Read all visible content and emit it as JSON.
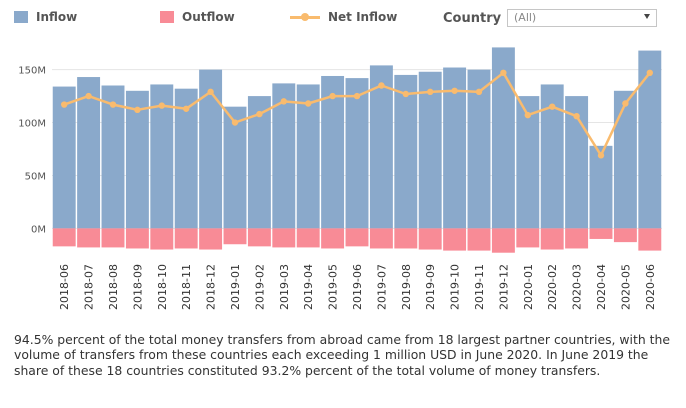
{
  "legend": {
    "inflow": "Inflow",
    "outflow": "Outflow",
    "net": "Net Inflow"
  },
  "filter": {
    "label": "Country",
    "value": "(All)"
  },
  "caption": "94.5% percent of the total money transfers from abroad came from 18 largest partner countries, with the volume of transfers from these countries each exceeding 1 million USD in June 2020. In June 2019 the share of these 18 countries constituted 93.2% percent of the total volume of money transfers.",
  "colors": {
    "inflow": "#8aa9cb",
    "outflow": "#f88b96",
    "net": "#f9bb6e",
    "grid": "#e5e5e5",
    "axis_text": "#555555"
  },
  "chart_data": {
    "type": "bar",
    "categories": [
      "2018-06",
      "2018-07",
      "2018-08",
      "2018-09",
      "2018-10",
      "2018-11",
      "2018-12",
      "2019-01",
      "2019-02",
      "2019-03",
      "2019-04",
      "2019-05",
      "2019-06",
      "2019-07",
      "2019-08",
      "2019-09",
      "2019-10",
      "2019-11",
      "2019-12",
      "2020-01",
      "2020-02",
      "2020-03",
      "2020-04",
      "2020-05",
      "2020-06"
    ],
    "y_ticks": [
      "150M",
      "100M",
      "50M",
      "0M"
    ],
    "ylim": [
      -28,
      178
    ],
    "units": "M",
    "series": [
      {
        "name": "Inflow",
        "type": "bar",
        "values": [
          134,
          143,
          135,
          130,
          136,
          132,
          150,
          115,
          125,
          137,
          136,
          144,
          142,
          154,
          145,
          148,
          152,
          150,
          171,
          125,
          136,
          125,
          78,
          130,
          168
        ]
      },
      {
        "name": "Outflow",
        "type": "bar",
        "values": [
          -17,
          -18,
          -18,
          -19,
          -20,
          -19,
          -20,
          -15,
          -17,
          -18,
          -18,
          -19,
          -17,
          -19,
          -19,
          -20,
          -21,
          -21,
          -23,
          -18,
          -20,
          -19,
          -10,
          -13,
          -21
        ]
      },
      {
        "name": "Net Inflow",
        "type": "line",
        "values": [
          117,
          125,
          117,
          112,
          116,
          113,
          129,
          100,
          108,
          120,
          118,
          125,
          125,
          135,
          127,
          129,
          130,
          129,
          147,
          107,
          115,
          106,
          69,
          118,
          147
        ]
      }
    ]
  }
}
